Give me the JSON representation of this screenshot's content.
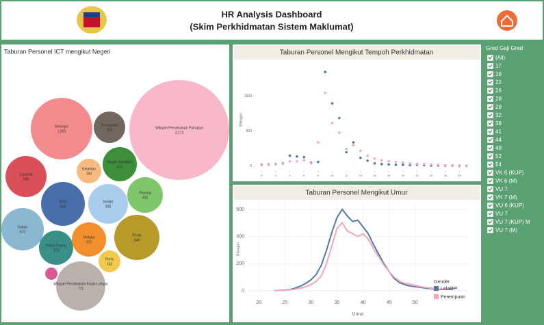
{
  "header": {
    "title": "HR Analysis Dashboard",
    "subtitle": "(Skim Perkhidmatan Sistem Maklumat)"
  },
  "filter": {
    "title": "Gred Gaji Gred",
    "options": [
      "(All)",
      "17",
      "19",
      "22",
      "26",
      "28",
      "29",
      "32",
      "38",
      "41",
      "44",
      "48",
      "52",
      "54",
      "VK 6 (KUP)",
      "VK 6 (M)",
      "VU 7",
      "VK 7 (M)",
      "VU 6 (KUP)",
      "VU 7",
      "VU 7 (KUP) M",
      "VU 7 (M)"
    ]
  },
  "chart_data": [
    {
      "type": "bubble",
      "title": "Taburan Personel ICT mengikut Negeri",
      "categories": [
        "Wilayah Persekutuan Putrajaya",
        "Selangor",
        "Terengganu",
        "Sarawak",
        "Kelantan",
        "Negeri Sembilan",
        "Pahang",
        "Johor",
        "Kedah",
        "Sabah",
        "Pulau Pinang",
        "Perak",
        "Melaka",
        "Perlis",
        null,
        "Wilayah Persekutuan Kuala Lumpur"
      ],
      "values": [
        3173,
        1205,
        315,
        536,
        193,
        372,
        402,
        610,
        500,
        572,
        372,
        648,
        372,
        152,
        48,
        771
      ],
      "value_labels": [
        "3,173",
        "1,205",
        "315",
        "536",
        "193",
        "372",
        "402",
        "610",
        "500",
        "572",
        "372",
        "648",
        "372",
        "152",
        null,
        "771"
      ],
      "colors": [
        "#f9b8c9",
        "#f28b8e",
        "#72675e",
        "#d9505a",
        "#f7bb7f",
        "#3d8f3a",
        "#7fc66b",
        "#4a6ea9",
        "#a8cdec",
        "#8bb6cf",
        "#3a8f86",
        "#b89a2a",
        "#f28e2b",
        "#f2c94c",
        "#d65b93",
        "#bab0ac"
      ]
    },
    {
      "type": "scatter",
      "title": "Taburan Personel Mengikut Tempoh Perkhidmatan",
      "y_label": "Bilangan",
      "x": [
        0,
        1,
        2,
        3,
        4,
        5,
        6,
        7,
        8,
        9,
        10,
        11,
        12,
        13,
        14,
        15,
        16,
        17,
        18,
        19,
        20,
        21,
        22,
        23,
        24,
        25,
        26,
        27,
        28,
        29
      ],
      "series": [
        {
          "name": "Lelaki",
          "color": "#4e79a7",
          "values": [
            20,
            25,
            30,
            40,
            150,
            140,
            130,
            50,
            60,
            1350,
            900,
            690,
            200,
            340,
            120,
            80,
            40,
            30,
            25,
            20,
            20,
            15,
            20,
            15,
            10,
            10,
            8,
            8,
            5,
            5
          ]
        },
        {
          "name": "Perempuan",
          "color": "#f4a6b8",
          "values": [
            15,
            20,
            25,
            35,
            70,
            70,
            85,
            40,
            340,
            1050,
            620,
            480,
            250,
            300,
            220,
            150,
            110,
            85,
            70,
            60,
            50,
            40,
            35,
            30,
            25,
            20,
            15,
            12,
            10,
            8
          ]
        }
      ],
      "xlim": [
        -1,
        30
      ],
      "xticks": [
        0,
        2,
        4,
        6,
        8,
        10,
        12,
        14,
        16,
        18,
        20,
        22,
        24,
        26,
        28
      ],
      "ylim": [
        -50,
        1450
      ],
      "yticks": [
        0,
        500,
        1000
      ]
    },
    {
      "type": "line",
      "title": "Taburan Personel Mengikut Umur",
      "x_label": "Umur",
      "y_label": "Bilangan",
      "legend_title": "Gender",
      "legend": "bottom-right",
      "x": [
        23,
        24,
        25,
        26,
        27,
        28,
        29,
        30,
        31,
        32,
        33,
        34,
        35,
        36,
        37,
        38,
        39,
        40,
        41,
        42,
        43,
        44,
        45,
        46,
        47,
        48,
        49,
        50,
        51,
        52,
        53,
        54,
        55,
        56,
        57,
        58
      ],
      "series": [
        {
          "name": "Lelaki",
          "color": "#4e79a7",
          "values": [
            2,
            3,
            5,
            10,
            20,
            35,
            55,
            80,
            120,
            190,
            300,
            430,
            540,
            600,
            550,
            510,
            520,
            470,
            420,
            340,
            270,
            200,
            140,
            90,
            60,
            45,
            35,
            30,
            25,
            20,
            15,
            12,
            10,
            10,
            15,
            20
          ]
        },
        {
          "name": "Perempuan",
          "color": "#f4a6b8",
          "values": [
            2,
            3,
            4,
            8,
            12,
            20,
            30,
            45,
            70,
            110,
            200,
            330,
            460,
            500,
            440,
            420,
            400,
            420,
            380,
            310,
            250,
            190,
            140,
            100,
            70,
            55,
            50,
            40,
            30,
            25,
            20,
            15,
            12,
            10,
            20,
            30
          ]
        }
      ],
      "xlim": [
        18,
        60
      ],
      "xticks": [
        20,
        25,
        30,
        35,
        40,
        45,
        50
      ],
      "ylim": [
        -15,
        640
      ],
      "yticks": [
        0,
        200,
        400,
        600
      ]
    }
  ]
}
